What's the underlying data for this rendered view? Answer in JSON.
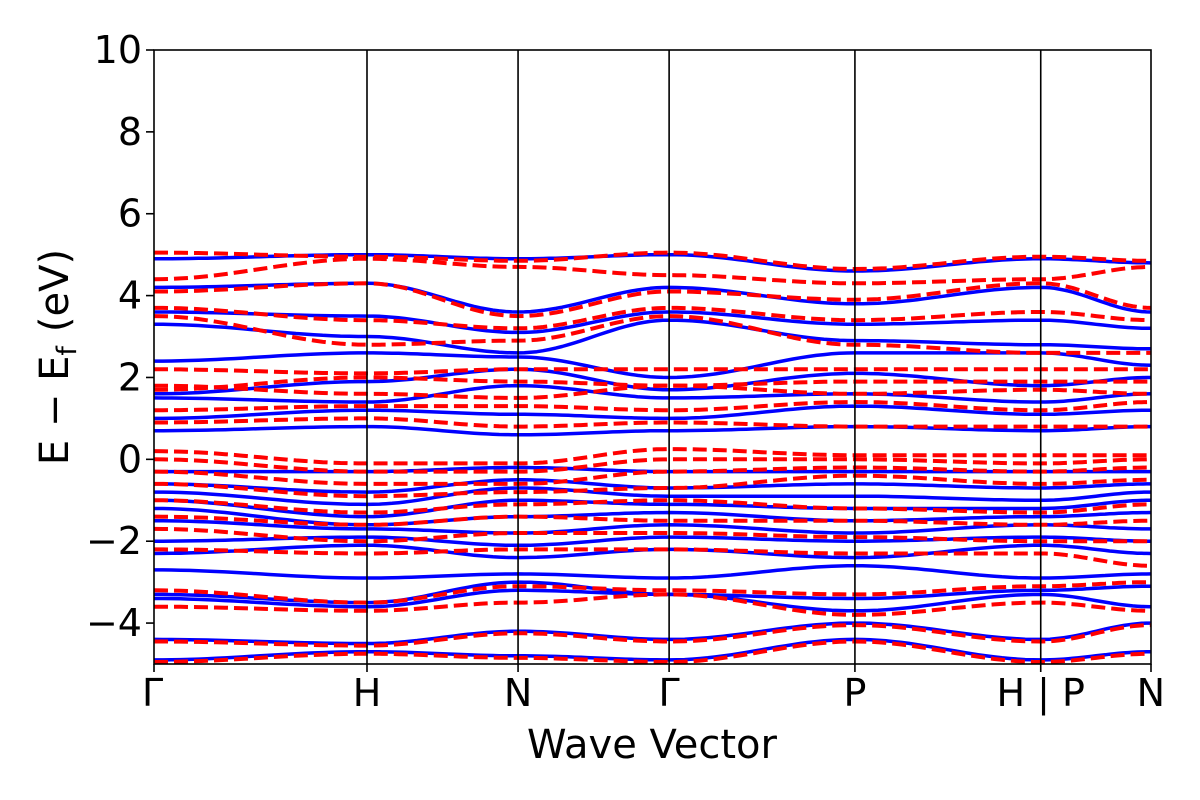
{
  "chart_data": {
    "type": "line",
    "title": "",
    "xlabel": "Wave Vector",
    "ylabel": {
      "main": "E − E",
      "subscript": "f",
      "unit": "(eV)"
    },
    "ylim": [
      -5,
      10
    ],
    "yticks": [
      -4,
      -2,
      0,
      2,
      4,
      6,
      8,
      10
    ],
    "ytick_labels": [
      "−4",
      "−2",
      "0",
      "2",
      "4",
      "6",
      "8",
      "10"
    ],
    "xlim": [
      0,
      6.6
    ],
    "kpoint_positions": [
      0,
      1.41,
      2.41,
      3.41,
      4.64,
      5.87,
      6.6
    ],
    "kpoint_labels": [
      "Γ",
      "H",
      "N",
      "Γ",
      "P",
      "H | P",
      "N"
    ],
    "grid": false,
    "legend": "none",
    "colors": {
      "solid_series": "#0000ff",
      "dashed_series": "#ff0000",
      "frame": "#000000"
    },
    "series": [
      {
        "style": "solid",
        "color": "#0000ff",
        "bands": [
          {
            "y": [
              -4.9,
              -4.7,
              -4.8,
              -4.9,
              -4.4,
              -4.9,
              -4.7
            ]
          },
          {
            "y": [
              -4.4,
              -4.5,
              -4.2,
              -4.4,
              -4.0,
              -4.4,
              -4.0
            ]
          },
          {
            "y": [
              -3.4,
              -3.6,
              -3.2,
              -3.3,
              -3.7,
              -3.3,
              -3.6
            ]
          },
          {
            "y": [
              -3.3,
              -3.5,
              -3.0,
              -3.3,
              -3.4,
              -3.2,
              -3.1
            ]
          },
          {
            "y": [
              -2.7,
              -2.9,
              -2.8,
              -2.9,
              -2.6,
              -2.9,
              -2.8
            ]
          },
          {
            "y": [
              -2.3,
              -2.1,
              -2.4,
              -2.2,
              -2.4,
              -2.1,
              -2.3
            ]
          },
          {
            "y": [
              -2.0,
              -1.9,
              -2.1,
              -1.9,
              -2.0,
              -1.9,
              -2.0
            ]
          },
          {
            "y": [
              -1.5,
              -1.7,
              -1.8,
              -1.6,
              -1.8,
              -1.6,
              -1.7
            ]
          },
          {
            "y": [
              -1.2,
              -1.6,
              -1.4,
              -1.3,
              -1.5,
              -1.4,
              -1.3
            ]
          },
          {
            "y": [
              -1.0,
              -1.4,
              -1.0,
              -1.1,
              -1.2,
              -1.2,
              -1.0
            ]
          },
          {
            "y": [
              -0.8,
              -1.1,
              -0.7,
              -0.9,
              -0.9,
              -1.0,
              -0.8
            ]
          },
          {
            "y": [
              -0.6,
              -0.8,
              -0.5,
              -0.7,
              -0.6,
              -0.7,
              -0.6
            ]
          },
          {
            "y": [
              -0.3,
              -0.3,
              -0.2,
              -0.3,
              -0.3,
              -0.3,
              -0.3
            ]
          },
          {
            "y": [
              0.7,
              0.8,
              0.6,
              0.7,
              0.8,
              0.7,
              0.8
            ]
          },
          {
            "y": [
              1.0,
              1.2,
              1.1,
              1.0,
              1.3,
              1.1,
              1.2
            ]
          },
          {
            "y": [
              1.5,
              1.4,
              1.8,
              1.5,
              1.6,
              1.4,
              1.6
            ]
          },
          {
            "y": [
              1.6,
              1.9,
              2.2,
              1.7,
              2.1,
              1.8,
              2.0
            ]
          },
          {
            "y": [
              2.4,
              2.6,
              2.5,
              2.0,
              2.6,
              2.6,
              2.3
            ]
          },
          {
            "y": [
              3.3,
              3.0,
              2.6,
              3.4,
              2.9,
              2.8,
              2.7
            ]
          },
          {
            "y": [
              3.6,
              3.5,
              3.1,
              3.6,
              3.3,
              3.4,
              3.2
            ]
          },
          {
            "y": [
              4.2,
              4.3,
              3.6,
              4.2,
              3.8,
              4.2,
              3.6
            ]
          },
          {
            "y": [
              4.9,
              5.0,
              4.9,
              5.0,
              4.6,
              4.9,
              4.8
            ]
          }
        ]
      },
      {
        "style": "dashed",
        "color": "#ff0000",
        "bands": [
          {
            "y": [
              -4.95,
              -4.75,
              -4.85,
              -4.95,
              -4.45,
              -4.95,
              -4.75
            ]
          },
          {
            "y": [
              -4.45,
              -4.55,
              -4.25,
              -4.45,
              -4.05,
              -4.45,
              -4.05
            ]
          },
          {
            "y": [
              -3.6,
              -3.7,
              -3.5,
              -3.3,
              -3.8,
              -3.5,
              -3.7
            ]
          },
          {
            "y": [
              -3.2,
              -3.5,
              -3.1,
              -3.2,
              -3.3,
              -3.1,
              -3.0
            ]
          },
          {
            "y": [
              -2.2,
              -2.3,
              -2.2,
              -2.2,
              -2.3,
              -2.3,
              -2.6
            ]
          },
          {
            "y": [
              -1.7,
              -2.0,
              -1.8,
              -1.8,
              -1.9,
              -2.0,
              -2.0
            ]
          },
          {
            "y": [
              -1.4,
              -1.6,
              -1.4,
              -1.5,
              -1.5,
              -1.6,
              -1.5
            ]
          },
          {
            "y": [
              -1.0,
              -1.3,
              -1.1,
              -1.0,
              -1.2,
              -1.3,
              -1.1
            ]
          },
          {
            "y": [
              -0.6,
              -0.9,
              -0.8,
              -0.7,
              -0.4,
              -0.6,
              -0.5
            ]
          },
          {
            "y": [
              -0.3,
              -0.6,
              -0.6,
              -0.3,
              -0.2,
              -0.3,
              -0.2
            ]
          },
          {
            "y": [
              0.0,
              -0.3,
              -0.3,
              0.0,
              0.0,
              -0.1,
              0.0
            ]
          },
          {
            "y": [
              0.2,
              -0.1,
              -0.1,
              0.25,
              0.1,
              0.1,
              0.1
            ]
          },
          {
            "y": [
              0.9,
              1.0,
              0.8,
              0.9,
              0.8,
              0.8,
              0.8
            ]
          },
          {
            "y": [
              1.2,
              1.3,
              1.3,
              1.2,
              1.4,
              1.2,
              1.4
            ]
          },
          {
            "y": [
              1.8,
              1.6,
              1.5,
              1.8,
              1.6,
              1.7,
              1.6
            ]
          },
          {
            "y": [
              1.7,
              2.0,
              1.9,
              1.8,
              1.9,
              1.9,
              1.9
            ]
          },
          {
            "y": [
              2.2,
              2.1,
              2.2,
              2.2,
              2.2,
              2.2,
              2.2
            ]
          },
          {
            "y": [
              3.5,
              2.8,
              2.9,
              3.5,
              2.8,
              2.6,
              2.6
            ]
          },
          {
            "y": [
              3.7,
              3.4,
              3.2,
              3.7,
              3.4,
              3.6,
              3.4
            ]
          },
          {
            "y": [
              4.1,
              4.3,
              3.5,
              4.1,
              3.9,
              4.3,
              3.7
            ]
          },
          {
            "y": [
              4.4,
              4.9,
              4.7,
              4.5,
              4.3,
              4.4,
              4.7
            ]
          },
          {
            "y": [
              5.05,
              4.95,
              4.85,
              5.05,
              4.65,
              4.95,
              4.85
            ]
          }
        ]
      }
    ]
  }
}
